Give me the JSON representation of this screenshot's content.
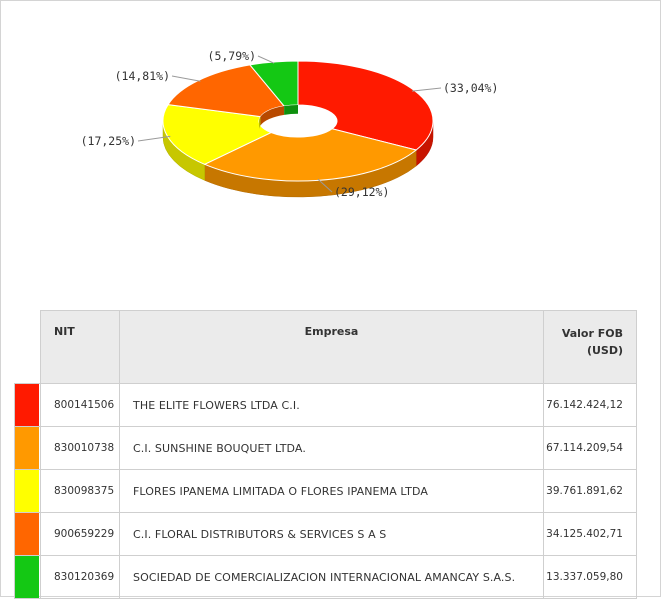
{
  "chart_data": {
    "type": "pie",
    "style": "3d-donut",
    "slices": [
      {
        "label": "(33,04%)",
        "value": 33.04,
        "color": "#ff1a00"
      },
      {
        "label": "(29,12%)",
        "value": 29.12,
        "color": "#ff9900"
      },
      {
        "label": "(17,25%)",
        "value": 17.25,
        "color": "#ffff00"
      },
      {
        "label": "(14,81%)",
        "value": 14.81,
        "color": "#ff6600"
      },
      {
        "label": "(5,79%)",
        "value": 5.79,
        "color": "#14c814"
      }
    ]
  },
  "table": {
    "headers": {
      "nit": "NIT",
      "empresa": "Empresa",
      "valor_line1": "Valor FOB",
      "valor_line2": "(USD)"
    },
    "rows": [
      {
        "color": "#ff1a00",
        "nit": "800141506",
        "empresa": "THE ELITE FLOWERS LTDA C.I.",
        "valor": "76.142.424,12"
      },
      {
        "color": "#ff9900",
        "nit": "830010738",
        "empresa": "C.I. SUNSHINE BOUQUET LTDA.",
        "valor": "67.114.209,54"
      },
      {
        "color": "#ffff00",
        "nit": "830098375",
        "empresa": "FLORES IPANEMA LIMITADA O FLORES IPANEMA LTDA",
        "valor": "39.761.891,62"
      },
      {
        "color": "#ff6600",
        "nit": "900659229",
        "empresa": "C.I. FLORAL DISTRIBUTORS & SERVICES S A S",
        "valor": "34.125.402,71"
      },
      {
        "color": "#14c814",
        "nit": "830120369",
        "empresa": "SOCIEDAD DE COMERCIALIZACION INTERNACIONAL AMANCAY S.A.S.",
        "valor": "13.337.059,80"
      }
    ]
  }
}
